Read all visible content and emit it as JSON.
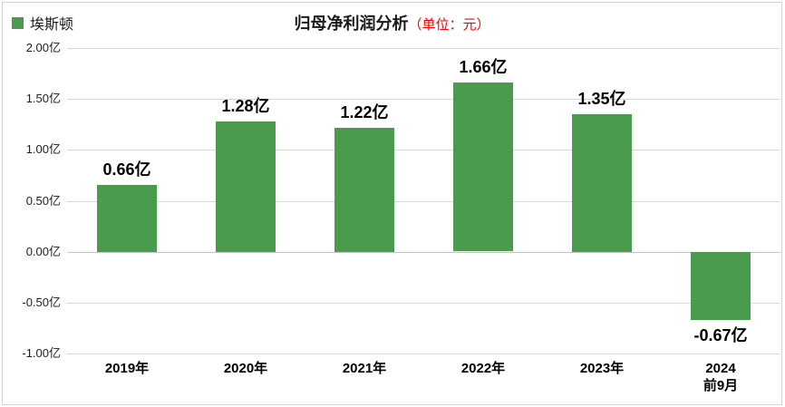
{
  "chart_data": {
    "type": "bar",
    "title": "归母净利润分析",
    "title_unit": "（单位：元）",
    "legend": "埃斯顿",
    "legend_position": "top-left",
    "categories": [
      "2019年",
      "2020年",
      "2021年",
      "2022年",
      "2023年",
      "2024\n前9月"
    ],
    "values": [
      0.66,
      1.28,
      1.22,
      1.66,
      1.35,
      -0.67
    ],
    "data_labels": [
      "0.66亿",
      "1.28亿",
      "1.22亿",
      "1.66亿",
      "1.35亿",
      "-0.67亿"
    ],
    "y_ticks": [
      {
        "label": "2.00亿",
        "value": 2.0
      },
      {
        "label": "1.50亿",
        "value": 1.5
      },
      {
        "label": "1.00亿",
        "value": 1.0
      },
      {
        "label": "0.50亿",
        "value": 0.5
      },
      {
        "label": "0.00亿",
        "value": 0.0
      },
      {
        "label": "-0.50亿",
        "value": -0.5
      },
      {
        "label": "-1.00亿",
        "value": -1.0
      }
    ],
    "ylim": [
      -1.0,
      2.0
    ],
    "grid": true,
    "colors": {
      "bar": "#4a9b4e",
      "title_unit": "#ff0000",
      "gridline": "#d9d9d9",
      "zero_line": "#c4c4c4",
      "frame_border": "#d2d2d2",
      "text": "#1a1a1a"
    }
  }
}
